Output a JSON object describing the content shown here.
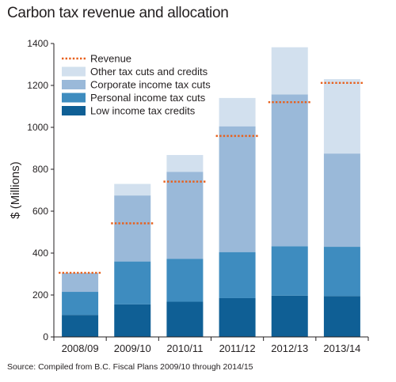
{
  "chart_data": {
    "type": "bar",
    "stacked": true,
    "title": "Carbon tax revenue and allocation",
    "xlabel": "",
    "ylabel": "$ (Millions)",
    "ylim": [
      0,
      1400
    ],
    "yticks": [
      0,
      200,
      400,
      600,
      800,
      1000,
      1200,
      1400
    ],
    "grid": false,
    "legend_position": "top-left",
    "categories": [
      "2008/09",
      "2009/10",
      "2010/11",
      "2011/12",
      "2012/13",
      "2013/14"
    ],
    "series": [
      {
        "name": "Low income tax credits",
        "color": "#0f5f95",
        "values": [
          105,
          155,
          168,
          185,
          197,
          195
        ]
      },
      {
        "name": "Personal income tax cuts",
        "color": "#3e8cbf",
        "values": [
          110,
          205,
          205,
          220,
          235,
          235
        ]
      },
      {
        "name": "Corporate income tax cuts",
        "color": "#9ab9d9",
        "values": [
          90,
          315,
          415,
          600,
          725,
          445
        ]
      },
      {
        "name": "Other tax cuts and credits",
        "color": "#d2e0ee",
        "values": [
          0,
          55,
          80,
          135,
          225,
          355
        ]
      }
    ],
    "revenue": {
      "name": "Revenue",
      "color": "#e8601c",
      "values": [
        306,
        542,
        741,
        959,
        1120,
        1212
      ]
    }
  },
  "source": "Source: Compiled from B.C. Fiscal Plans 2009/10 through 2014/15"
}
